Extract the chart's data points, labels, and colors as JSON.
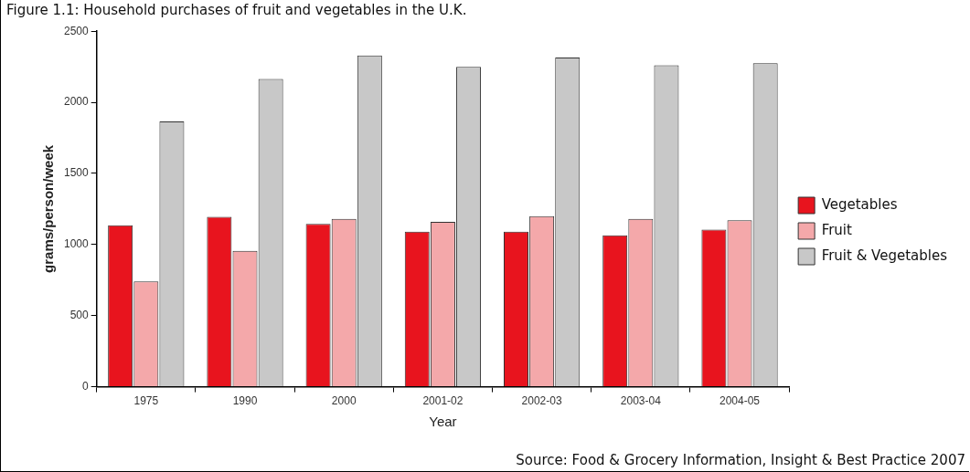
{
  "chart_data": {
    "type": "bar",
    "title": "Figure 1.1: Household purchases of fruit and vegetables in the U.K.",
    "xlabel": "Year",
    "ylabel": "grams/person/week",
    "categories": [
      "1975",
      "1990",
      "2000",
      "2001-02",
      "2002-03",
      "2003-04",
      "2004-05"
    ],
    "series": [
      {
        "name": "Vegetables",
        "color": "#e8141e",
        "values": [
          1135,
          1195,
          1145,
          1090,
          1090,
          1065,
          1105
        ]
      },
      {
        "name": "Fruit",
        "color": "#f4a8aa",
        "values": [
          740,
          955,
          1180,
          1160,
          1200,
          1180,
          1170
        ]
      },
      {
        "name": "Fruit & Vegetables",
        "color": "#c8c8c8",
        "values": [
          1865,
          2165,
          2330,
          2250,
          2315,
          2260,
          2275
        ]
      }
    ],
    "ylim": [
      0,
      2500
    ],
    "yticks": [
      0,
      500,
      1000,
      1500,
      2000,
      2500
    ],
    "grid": false,
    "legend": "right",
    "annotations": [
      "Source: Food & Grocery Information, Insight & Best Practice 2007"
    ]
  }
}
